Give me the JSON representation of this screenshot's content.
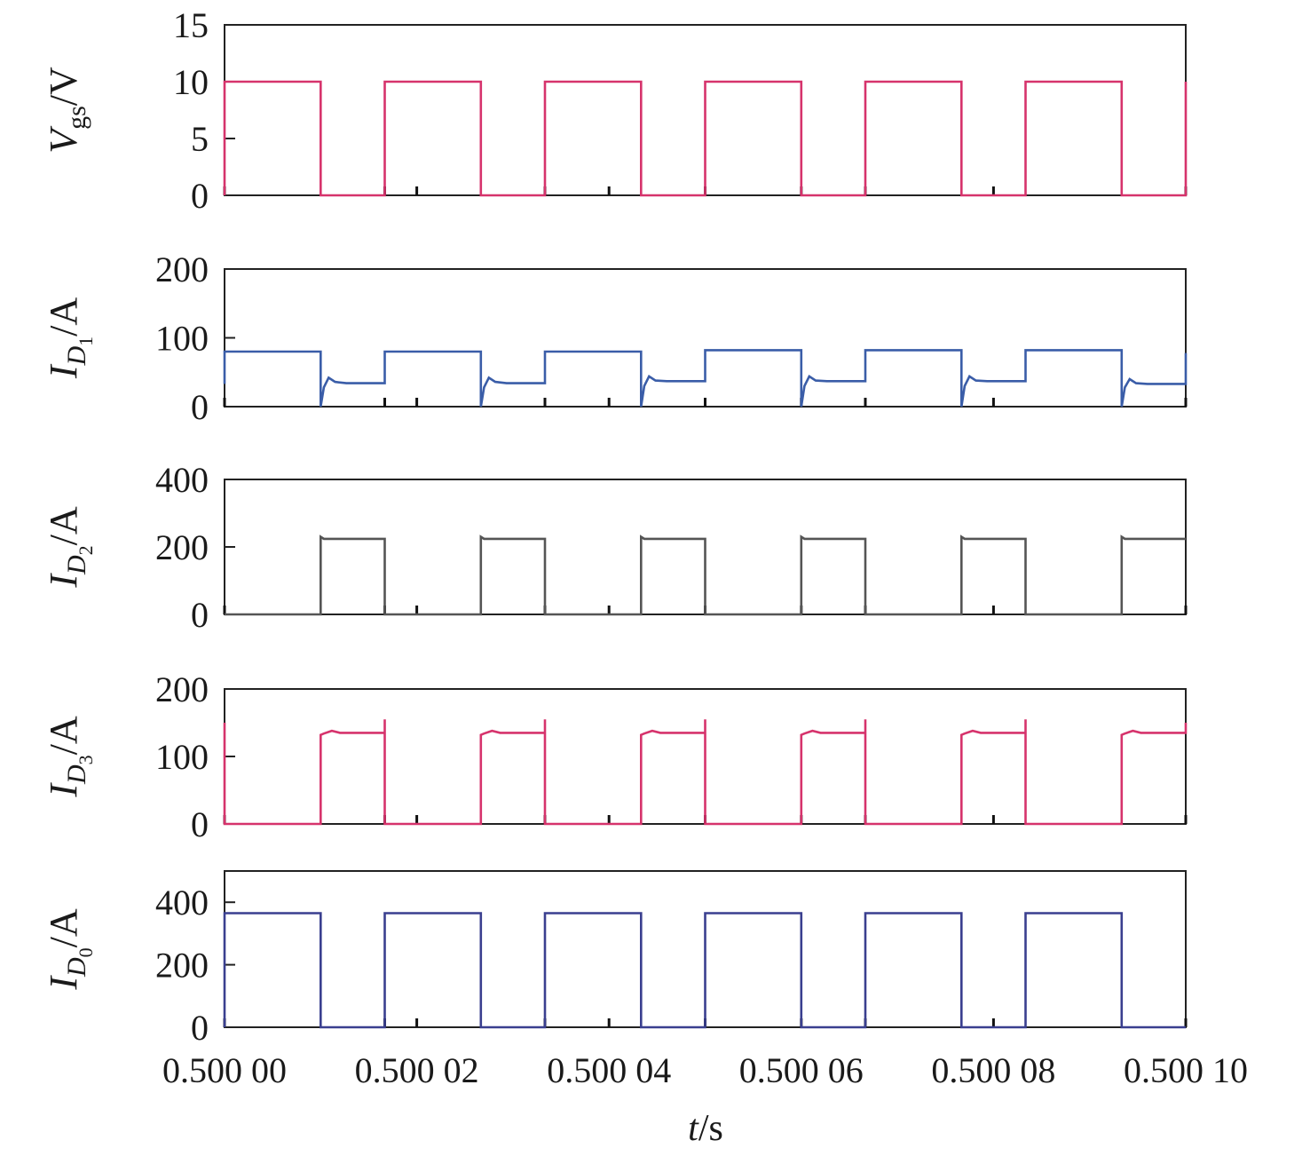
{
  "chart_data": [
    {
      "type": "line",
      "ylabel": "Vgs/V",
      "ylabel_main": "V",
      "ylabel_sub": "gs",
      "ylabel_unit": "/V",
      "ylim": [
        0,
        15
      ],
      "yticks": [
        "0",
        "5",
        "10",
        "15"
      ],
      "series": [
        {
          "color": "#d6336c",
          "x": [
            0,
            0,
            0.6,
            0.6,
            1,
            1,
            1.6,
            1.6,
            2,
            2,
            2.6,
            2.6,
            3,
            3,
            3.6,
            3.6,
            4,
            4,
            4.6,
            4.6,
            5,
            5,
            5.6,
            5.6,
            6,
            6
          ],
          "y": [
            0,
            10,
            10,
            0,
            0,
            10,
            10,
            0,
            0,
            10,
            10,
            0,
            0,
            10,
            10,
            0,
            0,
            10,
            10,
            0,
            0,
            10,
            10,
            0,
            0,
            10
          ]
        }
      ]
    },
    {
      "type": "line",
      "ylabel": "ID1/A",
      "ylabel_main": "I",
      "ylabel_sub": "D",
      "ylabel_subsub": "1",
      "ylabel_unit": "/A",
      "ylim": [
        0,
        200
      ],
      "yticks": [
        "0",
        "100",
        "200"
      ],
      "series": [
        {
          "color": "#3a5da8",
          "x": [
            0,
            0,
            0.6,
            0.6,
            0.62,
            0.65,
            0.69,
            0.76,
            1.0,
            1.0,
            1.6,
            1.6,
            1.62,
            1.65,
            1.69,
            1.76,
            2.0,
            2.0,
            2.6,
            2.6,
            2.62,
            2.65,
            2.69,
            2.76,
            3.0,
            3.0,
            3.6,
            3.6,
            3.62,
            3.65,
            3.69,
            3.76,
            4.0,
            4.0,
            4.6,
            4.6,
            4.62,
            4.65,
            4.69,
            4.76,
            5.0,
            5.0,
            5.6,
            5.6,
            5.62,
            5.65,
            5.69,
            5.76,
            6.0,
            6.0
          ],
          "y": [
            33,
            80,
            80,
            0,
            28,
            42,
            36,
            34,
            34,
            80,
            80,
            0,
            28,
            42,
            36,
            34,
            34,
            80,
            80,
            0,
            30,
            44,
            38,
            37,
            37,
            82,
            82,
            0,
            30,
            44,
            38,
            37,
            37,
            82,
            82,
            0,
            30,
            44,
            38,
            37,
            37,
            82,
            82,
            0,
            28,
            40,
            34,
            33,
            33,
            78
          ]
        }
      ]
    },
    {
      "type": "line",
      "ylabel": "ID2/A",
      "ylabel_main": "I",
      "ylabel_sub": "D",
      "ylabel_subsub": "2",
      "ylabel_unit": "/A",
      "ylim": [
        0,
        400
      ],
      "yticks": [
        "0",
        "200",
        "400"
      ],
      "series": [
        {
          "color": "#555555",
          "x": [
            0,
            0.6,
            0.6,
            0.62,
            0.66,
            1.0,
            1.0,
            1.6,
            1.6,
            1.62,
            1.66,
            2.0,
            2.0,
            2.6,
            2.6,
            2.62,
            2.66,
            3.0,
            3.0,
            3.6,
            3.6,
            3.62,
            3.66,
            4.0,
            4.0,
            4.6,
            4.6,
            4.62,
            4.66,
            5.0,
            5.0,
            5.6,
            5.6,
            5.62,
            5.66,
            6.0
          ],
          "y": [
            0,
            0,
            230,
            224,
            224,
            224,
            0,
            0,
            230,
            224,
            224,
            224,
            0,
            0,
            230,
            224,
            224,
            224,
            0,
            0,
            230,
            224,
            224,
            224,
            0,
            0,
            230,
            224,
            224,
            224,
            0,
            0,
            230,
            224,
            224,
            224
          ]
        }
      ]
    },
    {
      "type": "line",
      "ylabel": "ID3/A",
      "ylabel_main": "I",
      "ylabel_sub": "D",
      "ylabel_subsub": "3",
      "ylabel_unit": "/A",
      "ylim": [
        0,
        200
      ],
      "yticks": [
        "0",
        "100",
        "200"
      ],
      "series": [
        {
          "color": "#d6336c",
          "x": [
            0,
            0,
            0.6,
            0.6,
            0.62,
            0.67,
            0.72,
            1.0,
            1.0,
            1.0,
            1.6,
            1.6,
            1.62,
            1.67,
            1.72,
            2.0,
            2.0,
            2.0,
            2.6,
            2.6,
            2.62,
            2.67,
            2.72,
            3.0,
            3.0,
            3.0,
            3.6,
            3.6,
            3.62,
            3.67,
            3.72,
            4.0,
            4.0,
            4.0,
            4.6,
            4.6,
            4.62,
            4.67,
            4.72,
            5.0,
            5.0,
            5.0,
            5.6,
            5.6,
            5.62,
            5.67,
            5.72,
            6.0,
            6.0
          ],
          "y": [
            150,
            0,
            0,
            132,
            134,
            138,
            135,
            135,
            155,
            0,
            0,
            132,
            134,
            138,
            135,
            135,
            155,
            0,
            0,
            132,
            134,
            138,
            135,
            135,
            155,
            0,
            0,
            132,
            134,
            138,
            135,
            135,
            155,
            0,
            0,
            132,
            134,
            138,
            135,
            135,
            155,
            0,
            0,
            132,
            134,
            138,
            135,
            135,
            150
          ]
        }
      ]
    },
    {
      "type": "line",
      "ylabel": "ID0/A",
      "ylabel_main": "I",
      "ylabel_sub": "D",
      "ylabel_subsub": "0",
      "ylabel_unit": "/A",
      "ylim": [
        0,
        500
      ],
      "yticks": [
        "0",
        "200",
        "400"
      ],
      "series": [
        {
          "color": "#3a3f8f",
          "x": [
            0,
            0,
            0.6,
            0.6,
            1.0,
            1.0,
            1.6,
            1.6,
            2.0,
            2.0,
            2.6,
            2.6,
            3.0,
            3.0,
            3.6,
            3.6,
            4.0,
            4.0,
            4.6,
            4.6,
            5.0,
            5.0,
            5.6,
            5.6,
            6.0,
            6.0
          ],
          "y": [
            0,
            365,
            365,
            0,
            0,
            365,
            365,
            0,
            0,
            365,
            365,
            0,
            0,
            365,
            365,
            0,
            0,
            365,
            365,
            0,
            0,
            365,
            365,
            0,
            0,
            0
          ]
        }
      ]
    }
  ],
  "x_axis": {
    "label_italic": "t",
    "label_unit": "/s",
    "xlim": [
      0,
      6
    ],
    "tick_values": [
      0,
      1.2,
      2.4,
      3.6,
      4.8,
      6.0
    ],
    "tick_labels": [
      "0.500 00",
      "0.500 02",
      "0.500 04",
      "0.500 06",
      "0.500 08",
      "0.500 10"
    ]
  }
}
